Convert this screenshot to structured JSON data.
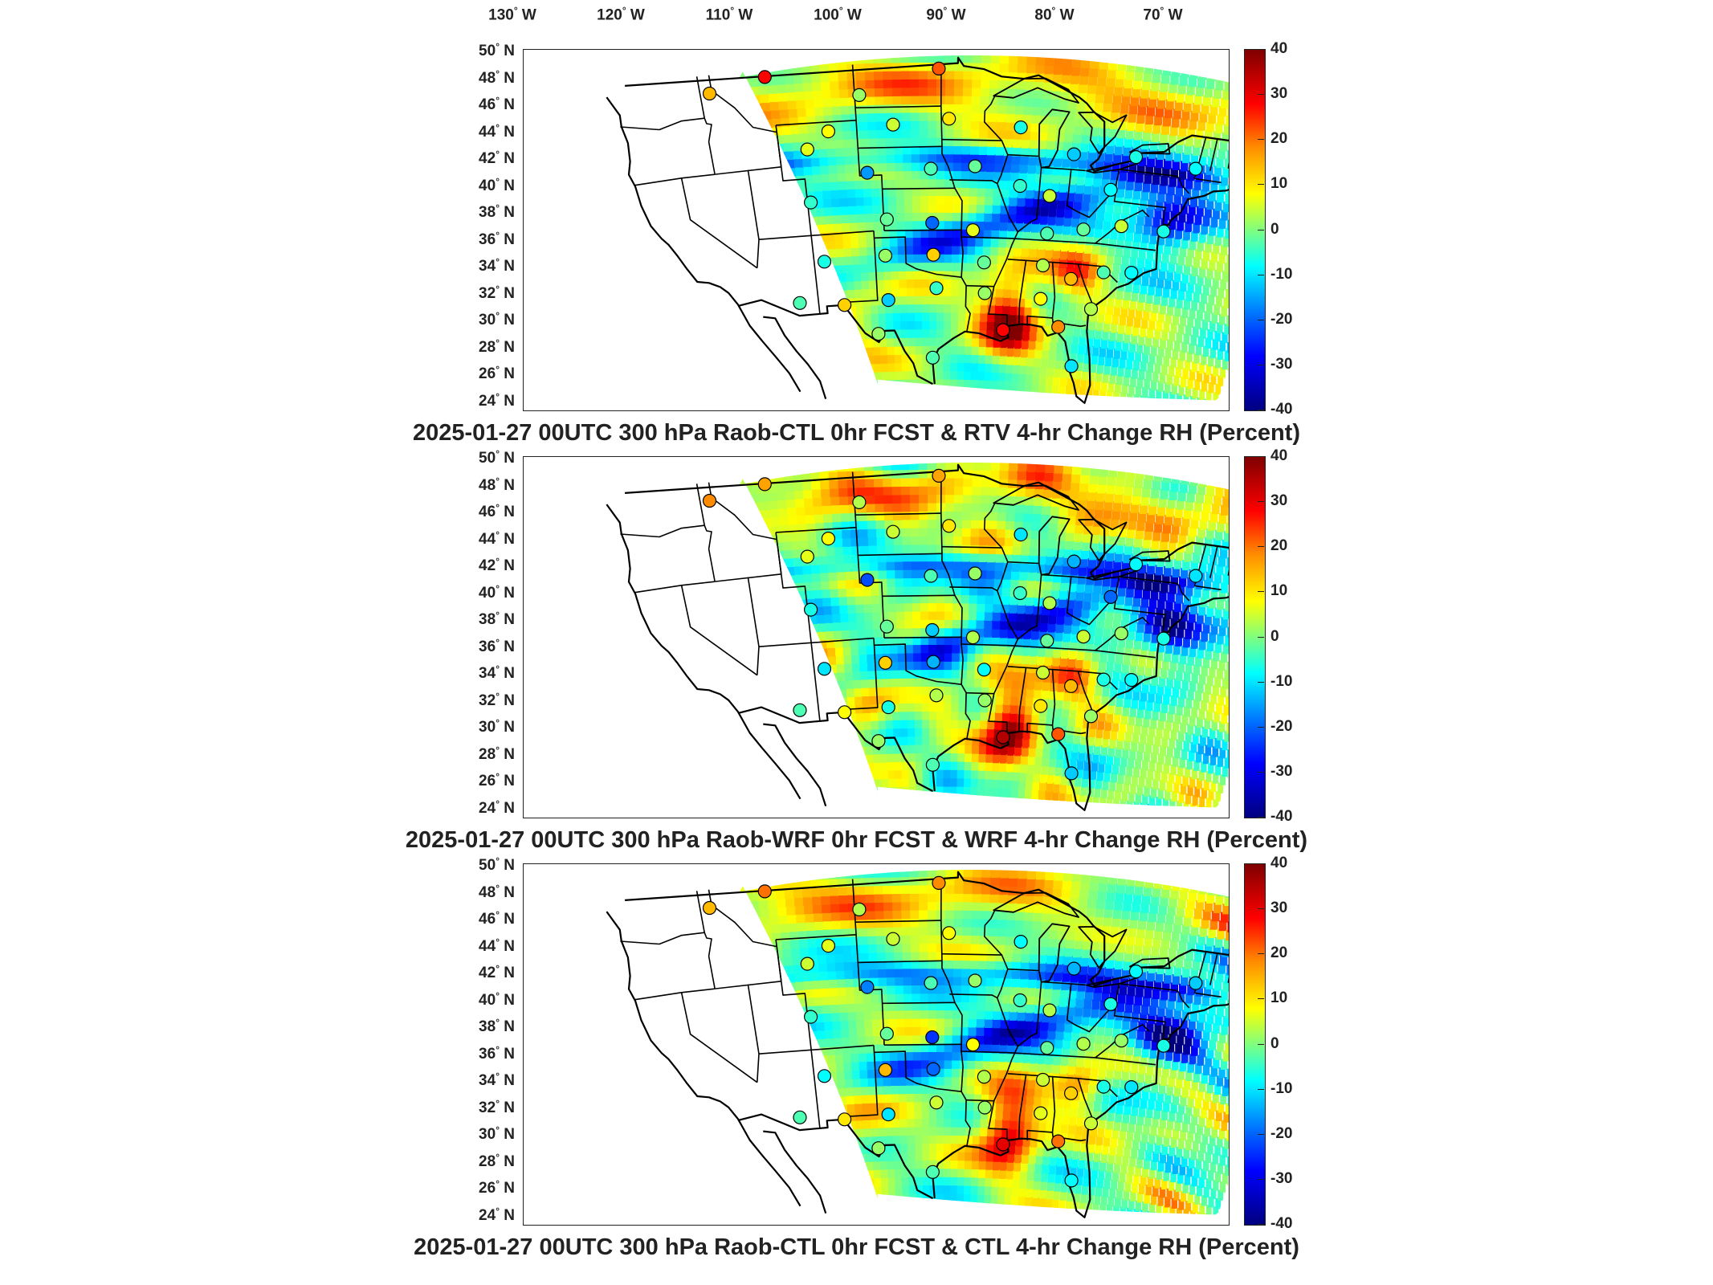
{
  "longitude_labels": [
    "130",
    "120",
    "110",
    "100",
    "90",
    "80",
    "70"
  ],
  "longitude_suffix": "W",
  "latitude_labels": [
    "50",
    "48",
    "46",
    "44",
    "42",
    "40",
    "38",
    "36",
    "34",
    "32",
    "30",
    "28",
    "26",
    "24"
  ],
  "latitude_suffix": "N",
  "colorbar_ticks": [
    "40",
    "30",
    "20",
    "10",
    "0",
    "-10",
    "-20",
    "-30",
    "-40"
  ],
  "panels": [
    {
      "title": "2025-01-27 00UTC 300 hPa Raob-CTL 0hr FCST & RTV 4-hr Change RH (Percent)"
    },
    {
      "title": "2025-01-27 00UTC 300 hPa Raob-WRF 0hr FCST & WRF 4-hr Change RH (Percent)"
    },
    {
      "title": "2025-01-27 00UTC 300 hPa Raob-CTL 0hr FCST & CTL 4-hr Change RH (Percent)"
    }
  ],
  "colors": {
    "scale_max": "#7f0000",
    "scale_high": "#ff0000",
    "scale_mid_high": "#ffff00",
    "scale_zero": "#7fff7f",
    "scale_mid_low": "#00ffff",
    "scale_low": "#0000ff",
    "scale_min": "#00007f"
  },
  "colorbar_range": [
    -40,
    40
  ],
  "raob_stations": [
    {
      "lon": -116.2,
      "lat": 47.7,
      "p": [
        16,
        20,
        16
      ]
    },
    {
      "lon": -111.4,
      "lat": 48.5,
      "p": [
        30,
        18,
        22
      ]
    },
    {
      "lon": -103.6,
      "lat": 46.8,
      "p": [
        2,
        4,
        4
      ]
    },
    {
      "lon": -96.8,
      "lat": 48.6,
      "p": [
        24,
        18,
        20
      ]
    },
    {
      "lon": -108.5,
      "lat": 43.1,
      "p": [
        8,
        8,
        6
      ]
    },
    {
      "lon": -106.5,
      "lat": 44.3,
      "p": [
        10,
        10,
        8
      ]
    },
    {
      "lon": -100.8,
      "lat": 44.6,
      "p": [
        6,
        6,
        6
      ]
    },
    {
      "lon": -95.9,
      "lat": 45.0,
      "p": [
        12,
        12,
        10
      ]
    },
    {
      "lon": -89.6,
      "lat": 44.5,
      "p": [
        -8,
        -12,
        -10
      ]
    },
    {
      "lon": -84.7,
      "lat": 42.8,
      "p": [
        -14,
        -16,
        -16
      ]
    },
    {
      "lon": -79.2,
      "lat": 43.0,
      "p": [
        -8,
        -10,
        -10
      ]
    },
    {
      "lon": -73.8,
      "lat": 42.7,
      "p": [
        -10,
        -12,
        -14
      ]
    },
    {
      "lon": -103.3,
      "lat": 41.2,
      "p": [
        -18,
        -24,
        -20
      ]
    },
    {
      "lon": -97.5,
      "lat": 41.4,
      "p": [
        -4,
        -4,
        -4
      ]
    },
    {
      "lon": -93.5,
      "lat": 41.6,
      "p": [
        -2,
        2,
        2
      ]
    },
    {
      "lon": -89.3,
      "lat": 40.3,
      "p": [
        -6,
        -6,
        -6
      ]
    },
    {
      "lon": -86.5,
      "lat": 39.7,
      "p": [
        6,
        4,
        4
      ]
    },
    {
      "lon": -81.0,
      "lat": 40.5,
      "p": [
        -10,
        -22,
        -8
      ]
    },
    {
      "lon": -108.7,
      "lat": 39.3,
      "p": [
        -6,
        -8,
        -6
      ]
    },
    {
      "lon": -101.7,
      "lat": 37.8,
      "p": [
        -2,
        -2,
        -2
      ]
    },
    {
      "lon": -97.4,
      "lat": 37.5,
      "p": [
        -22,
        -14,
        -26
      ]
    },
    {
      "lon": -93.5,
      "lat": 37.0,
      "p": [
        8,
        4,
        10
      ]
    },
    {
      "lon": -86.4,
      "lat": 37.0,
      "p": [
        -4,
        -2,
        -2
      ]
    },
    {
      "lon": -83.0,
      "lat": 37.5,
      "p": [
        -2,
        6,
        4
      ]
    },
    {
      "lon": -79.5,
      "lat": 38.0,
      "p": [
        6,
        2,
        2
      ]
    },
    {
      "lon": -75.5,
      "lat": 38.0,
      "p": [
        -8,
        -8,
        -8
      ]
    },
    {
      "lon": -108.0,
      "lat": 35.0,
      "p": [
        -8,
        -12,
        -10
      ]
    },
    {
      "lon": -102.0,
      "lat": 35.2,
      "p": [
        2,
        14,
        16
      ]
    },
    {
      "lon": -97.3,
      "lat": 35.2,
      "p": [
        14,
        -16,
        -22
      ]
    },
    {
      "lon": -92.3,
      "lat": 34.7,
      "p": [
        -2,
        -10,
        4
      ]
    },
    {
      "lon": -86.5,
      "lat": 34.7,
      "p": [
        4,
        6,
        6
      ]
    },
    {
      "lon": -83.6,
      "lat": 33.9,
      "p": [
        16,
        16,
        14
      ]
    },
    {
      "lon": -80.5,
      "lat": 34.6,
      "p": [
        -4,
        -8,
        -8
      ]
    },
    {
      "lon": -77.8,
      "lat": 34.8,
      "p": [
        -10,
        -10,
        -12
      ]
    },
    {
      "lon": -110.9,
      "lat": 32.2,
      "p": [
        -4,
        -4,
        -4
      ]
    },
    {
      "lon": -106.4,
      "lat": 31.8,
      "p": [
        14,
        10,
        12
      ]
    },
    {
      "lon": -101.9,
      "lat": 32.0,
      "p": [
        -14,
        -8,
        -12
      ]
    },
    {
      "lon": -97.0,
      "lat": 32.8,
      "p": [
        -6,
        4,
        6
      ]
    },
    {
      "lon": -92.1,
      "lat": 32.5,
      "p": [
        2,
        2,
        2
      ]
    },
    {
      "lon": -86.4,
      "lat": 32.3,
      "p": [
        10,
        12,
        8
      ]
    },
    {
      "lon": -81.2,
      "lat": 31.9,
      "p": [
        4,
        2,
        6
      ]
    },
    {
      "lon": -103.1,
      "lat": 29.6,
      "p": [
        2,
        2,
        2
      ]
    },
    {
      "lon": -97.4,
      "lat": 27.8,
      "p": [
        -4,
        -4,
        -4
      ]
    },
    {
      "lon": -90.0,
      "lat": 29.9,
      "p": [
        30,
        36,
        32
      ]
    },
    {
      "lon": -84.3,
      "lat": 30.4,
      "p": [
        20,
        24,
        22
      ]
    },
    {
      "lon": -82.4,
      "lat": 27.7,
      "p": [
        -12,
        -14,
        -10
      ]
    }
  ]
}
